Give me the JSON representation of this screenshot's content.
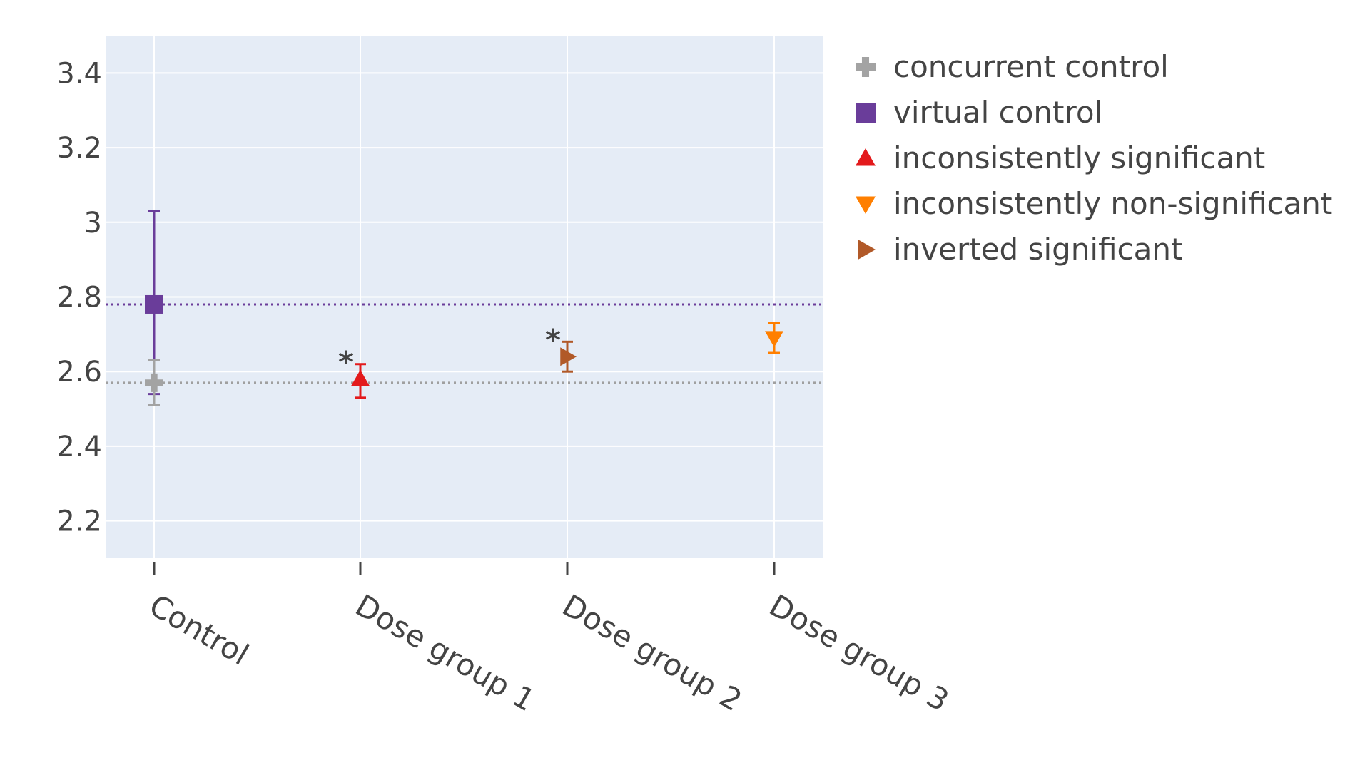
{
  "chart_data": {
    "type": "scatter",
    "title": "",
    "xlabel": "",
    "ylabel": "",
    "categories": [
      "Control",
      "Dose group 1",
      "Dose group 2",
      "Dose group 3"
    ],
    "ylim": [
      2.1,
      3.5
    ],
    "yticks": [
      2.2,
      2.4,
      2.6,
      2.8,
      3,
      3.2,
      3.4
    ],
    "ytick_labels": [
      "2.2",
      "2.4",
      "2.6",
      "2.8",
      "3",
      "3.2",
      "3.4"
    ],
    "grid": true,
    "legend_position": "right",
    "plot_background": "#e5ecf6",
    "reference_lines": [
      {
        "series": "virtual control",
        "y": 2.78,
        "style": "dotted",
        "color": "#6a3d9a"
      },
      {
        "series": "concurrent control",
        "y": 2.57,
        "style": "dotted",
        "color": "#a0a0a0"
      }
    ],
    "series": [
      {
        "name": "concurrent control",
        "marker": "cross",
        "color": "#a3a3a3",
        "points": [
          {
            "category": "Control",
            "y": 2.57,
            "err_low": 2.51,
            "err_high": 2.63
          }
        ]
      },
      {
        "name": "virtual control",
        "marker": "square",
        "color": "#6a3d9a",
        "points": [
          {
            "category": "Control",
            "y": 2.78,
            "err_low": 2.54,
            "err_high": 3.03
          }
        ]
      },
      {
        "name": "inconsistently significant",
        "marker": "triangle-up",
        "color": "#e31a1c",
        "points": [
          {
            "category": "Dose group 1",
            "y": 2.58,
            "err_low": 2.53,
            "err_high": 2.62,
            "annotation": "*"
          }
        ]
      },
      {
        "name": "inconsistently non-significant",
        "marker": "triangle-down",
        "color": "#ff7f00",
        "points": [
          {
            "category": "Dose group 3",
            "y": 2.69,
            "err_low": 2.65,
            "err_high": 2.73
          }
        ]
      },
      {
        "name": "inverted significant",
        "marker": "triangle-right",
        "color": "#b15928",
        "points": [
          {
            "category": "Dose group 2",
            "y": 2.64,
            "err_low": 2.6,
            "err_high": 2.68,
            "annotation": "*"
          }
        ]
      }
    ]
  }
}
